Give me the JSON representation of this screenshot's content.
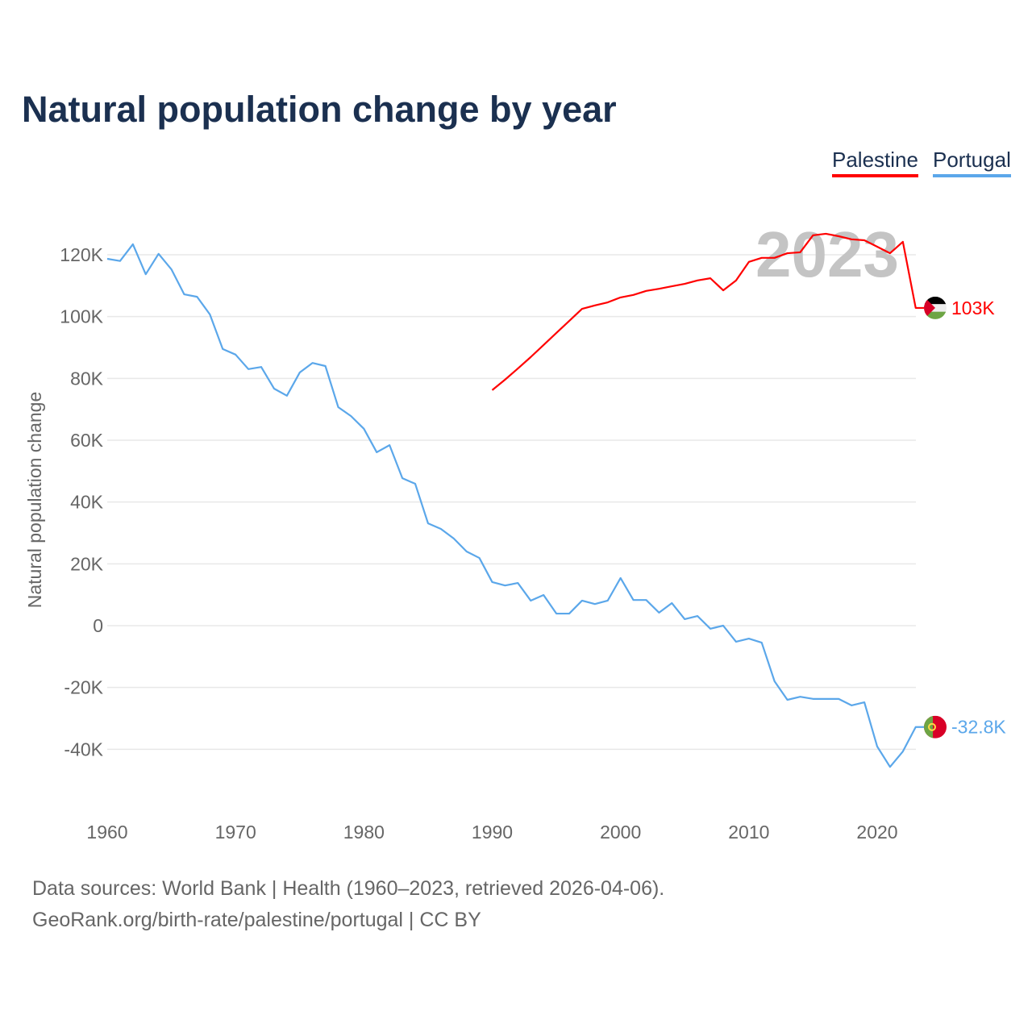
{
  "chart_data": {
    "type": "line",
    "title": "Natural population change by year",
    "xlabel": "",
    "ylabel": "Natural population change",
    "xlim": [
      1960,
      2023
    ],
    "ylim": [
      -55000,
      132000
    ],
    "grid": true,
    "legend_position": "top-right",
    "x_ticks": [
      1960,
      1970,
      1980,
      1990,
      2000,
      2010,
      2020
    ],
    "y_ticks": [
      -40000,
      -20000,
      0,
      20000,
      40000,
      60000,
      80000,
      100000,
      120000
    ],
    "y_tick_labels": [
      "-40K",
      "-20K",
      "0",
      "20K",
      "40K",
      "60K",
      "80K",
      "100K",
      "120K"
    ],
    "year_watermark": "2023",
    "series": [
      {
        "name": "Palestine",
        "color": "#ff0000",
        "end_label": "103K",
        "flag": "palestine-flag",
        "start_year": 1990,
        "values": [
          76200,
          79600,
          83200,
          86900,
          90800,
          94700,
          98600,
          102500,
          103600,
          104600,
          106200,
          107000,
          108300,
          109000,
          109800,
          110600,
          111700,
          112400,
          108500,
          111700,
          117700,
          119000,
          119000,
          120500,
          120800,
          126300,
          126800,
          126000,
          125000,
          124700,
          122600,
          120500,
          124200,
          102800
        ]
      },
      {
        "name": "Portugal",
        "color": "#5ba7ea",
        "end_label": "-32.8K",
        "flag": "portugal-flag",
        "start_year": 1960,
        "values": [
          118700,
          118000,
          123400,
          113700,
          120300,
          115300,
          107200,
          106400,
          100700,
          89500,
          87700,
          83000,
          83700,
          76700,
          74400,
          81900,
          85000,
          84000,
          70700,
          67800,
          63700,
          56100,
          58400,
          47700,
          45900,
          33100,
          31300,
          28200,
          24000,
          21900,
          14100,
          13000,
          13800,
          8100,
          9900,
          3900,
          3900,
          8100,
          7000,
          8100,
          15400,
          8300,
          8300,
          4200,
          7300,
          2100,
          3100,
          -1000,
          0,
          -5200,
          -4200,
          -5500,
          -18000,
          -24000,
          -23000,
          -23700,
          -23700,
          -23700,
          -25800,
          -24800,
          -39100,
          -45700,
          -40700,
          -32800
        ]
      }
    ]
  },
  "footer": {
    "sources": "Data sources: World Bank | Health (1960–2023, retrieved 2026-04-06).",
    "credit": "GeoRank.org/birth-rate/palestine/portugal | CC BY"
  }
}
